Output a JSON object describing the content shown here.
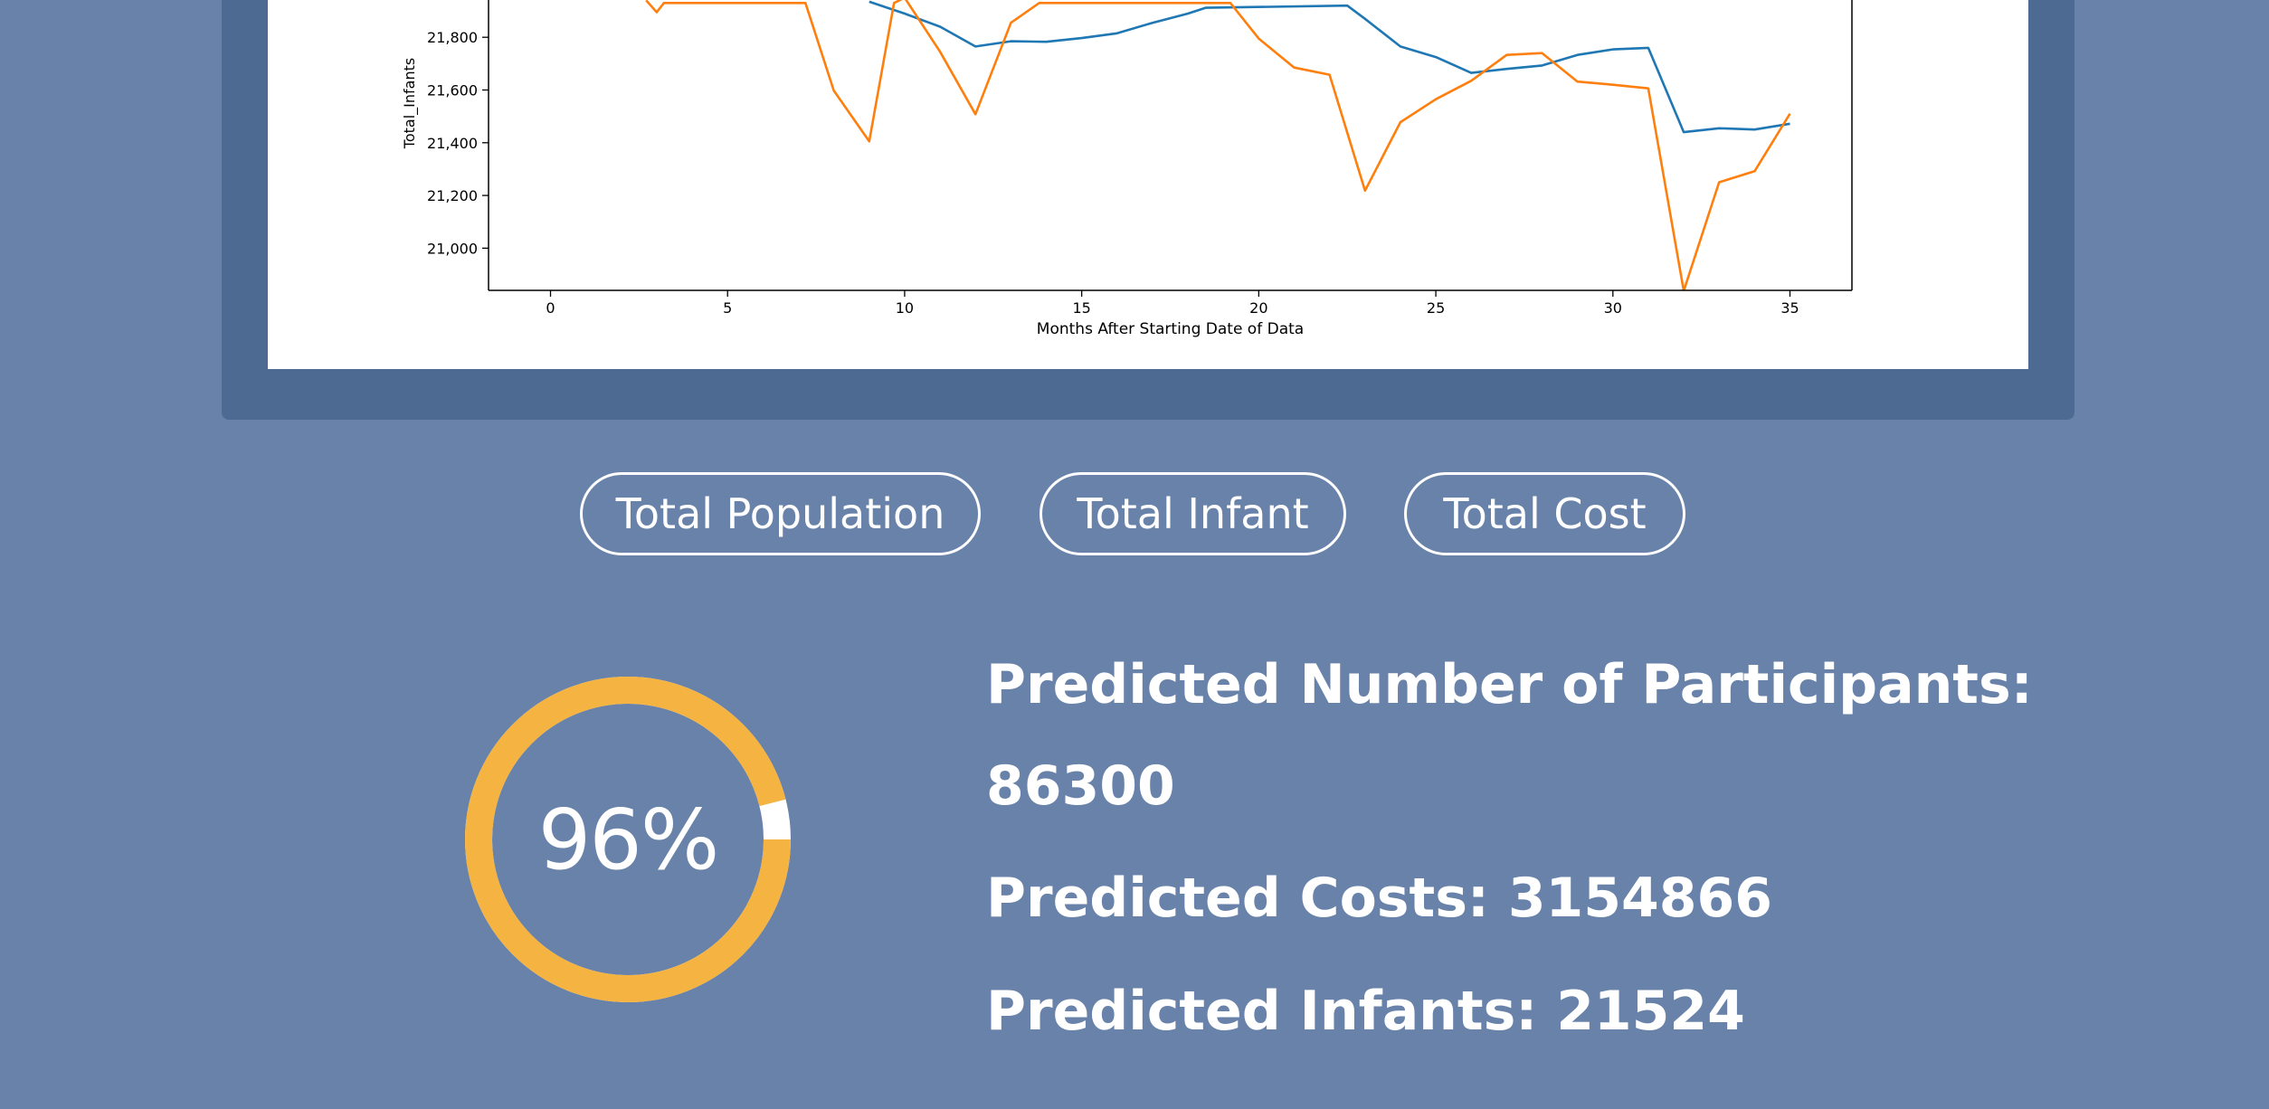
{
  "chart_data": {
    "type": "line",
    "xlabel": "Months After Starting Date of Data",
    "ylabel": "Total_Infants",
    "x_ticks": [
      0,
      5,
      10,
      15,
      20,
      25,
      30,
      35
    ],
    "y_ticks": [
      21000,
      21200,
      21400,
      21600,
      21800
    ],
    "y_tick_labels": [
      "21,000",
      "21,200",
      "21,400",
      "21,600",
      "21,800"
    ],
    "xlim": [
      -1.75,
      36.75
    ],
    "ylim": [
      20840,
      22010
    ],
    "series": [
      {
        "color": "#1f77b4",
        "points": [
          [
            9,
            21935
          ],
          [
            10,
            21890
          ],
          [
            11,
            21840
          ],
          [
            12,
            21765
          ],
          [
            13,
            21785
          ],
          [
            14,
            21783
          ],
          [
            15,
            21797
          ],
          [
            16,
            21815
          ],
          [
            17,
            21855
          ],
          [
            18,
            21890
          ],
          [
            18.5,
            21912
          ],
          [
            22.5,
            21920
          ],
          [
            23,
            21870
          ],
          [
            24,
            21765
          ],
          [
            25,
            21725
          ],
          [
            26,
            21665
          ],
          [
            27,
            21680
          ],
          [
            28,
            21693
          ],
          [
            29,
            21733
          ],
          [
            30,
            21754
          ],
          [
            31,
            21760
          ],
          [
            32,
            21440
          ],
          [
            33,
            21455
          ],
          [
            34,
            21450
          ],
          [
            35,
            21472
          ]
        ]
      },
      {
        "color": "#ff7f0e",
        "points": [
          [
            2.7,
            21940
          ],
          [
            3,
            21895
          ],
          [
            3.2,
            21930
          ],
          [
            7.2,
            21930
          ],
          [
            8,
            21598
          ],
          [
            9,
            21405
          ],
          [
            9.7,
            21930
          ],
          [
            10,
            21950
          ],
          [
            11,
            21745
          ],
          [
            12,
            21508
          ],
          [
            13,
            21855
          ],
          [
            13.8,
            21930
          ],
          [
            19.2,
            21930
          ],
          [
            20,
            21795
          ],
          [
            21,
            21685
          ],
          [
            22,
            21658
          ],
          [
            23,
            21218
          ],
          [
            24,
            21478
          ],
          [
            25,
            21565
          ],
          [
            26,
            21635
          ],
          [
            27,
            21733
          ],
          [
            28,
            21740
          ],
          [
            29,
            21632
          ],
          [
            30,
            21620
          ],
          [
            31,
            21606
          ],
          [
            32,
            20838
          ],
          [
            33,
            21250
          ],
          [
            34,
            21292
          ],
          [
            35,
            21510
          ]
        ]
      }
    ]
  },
  "buttons": [
    "Total Population",
    "Total Infant",
    "Total Cost"
  ],
  "gauge": {
    "percent": 96,
    "label": "96%",
    "color": "#f5b342",
    "gap_color": "#ffffff"
  },
  "predictions": {
    "participants_label": "Predicted Number of Participants:",
    "participants_value": "86300",
    "costs_label": "Predicted Costs:",
    "costs_value": "3154866",
    "infants_label": "Predicted Infants:",
    "infants_value": "21524"
  }
}
